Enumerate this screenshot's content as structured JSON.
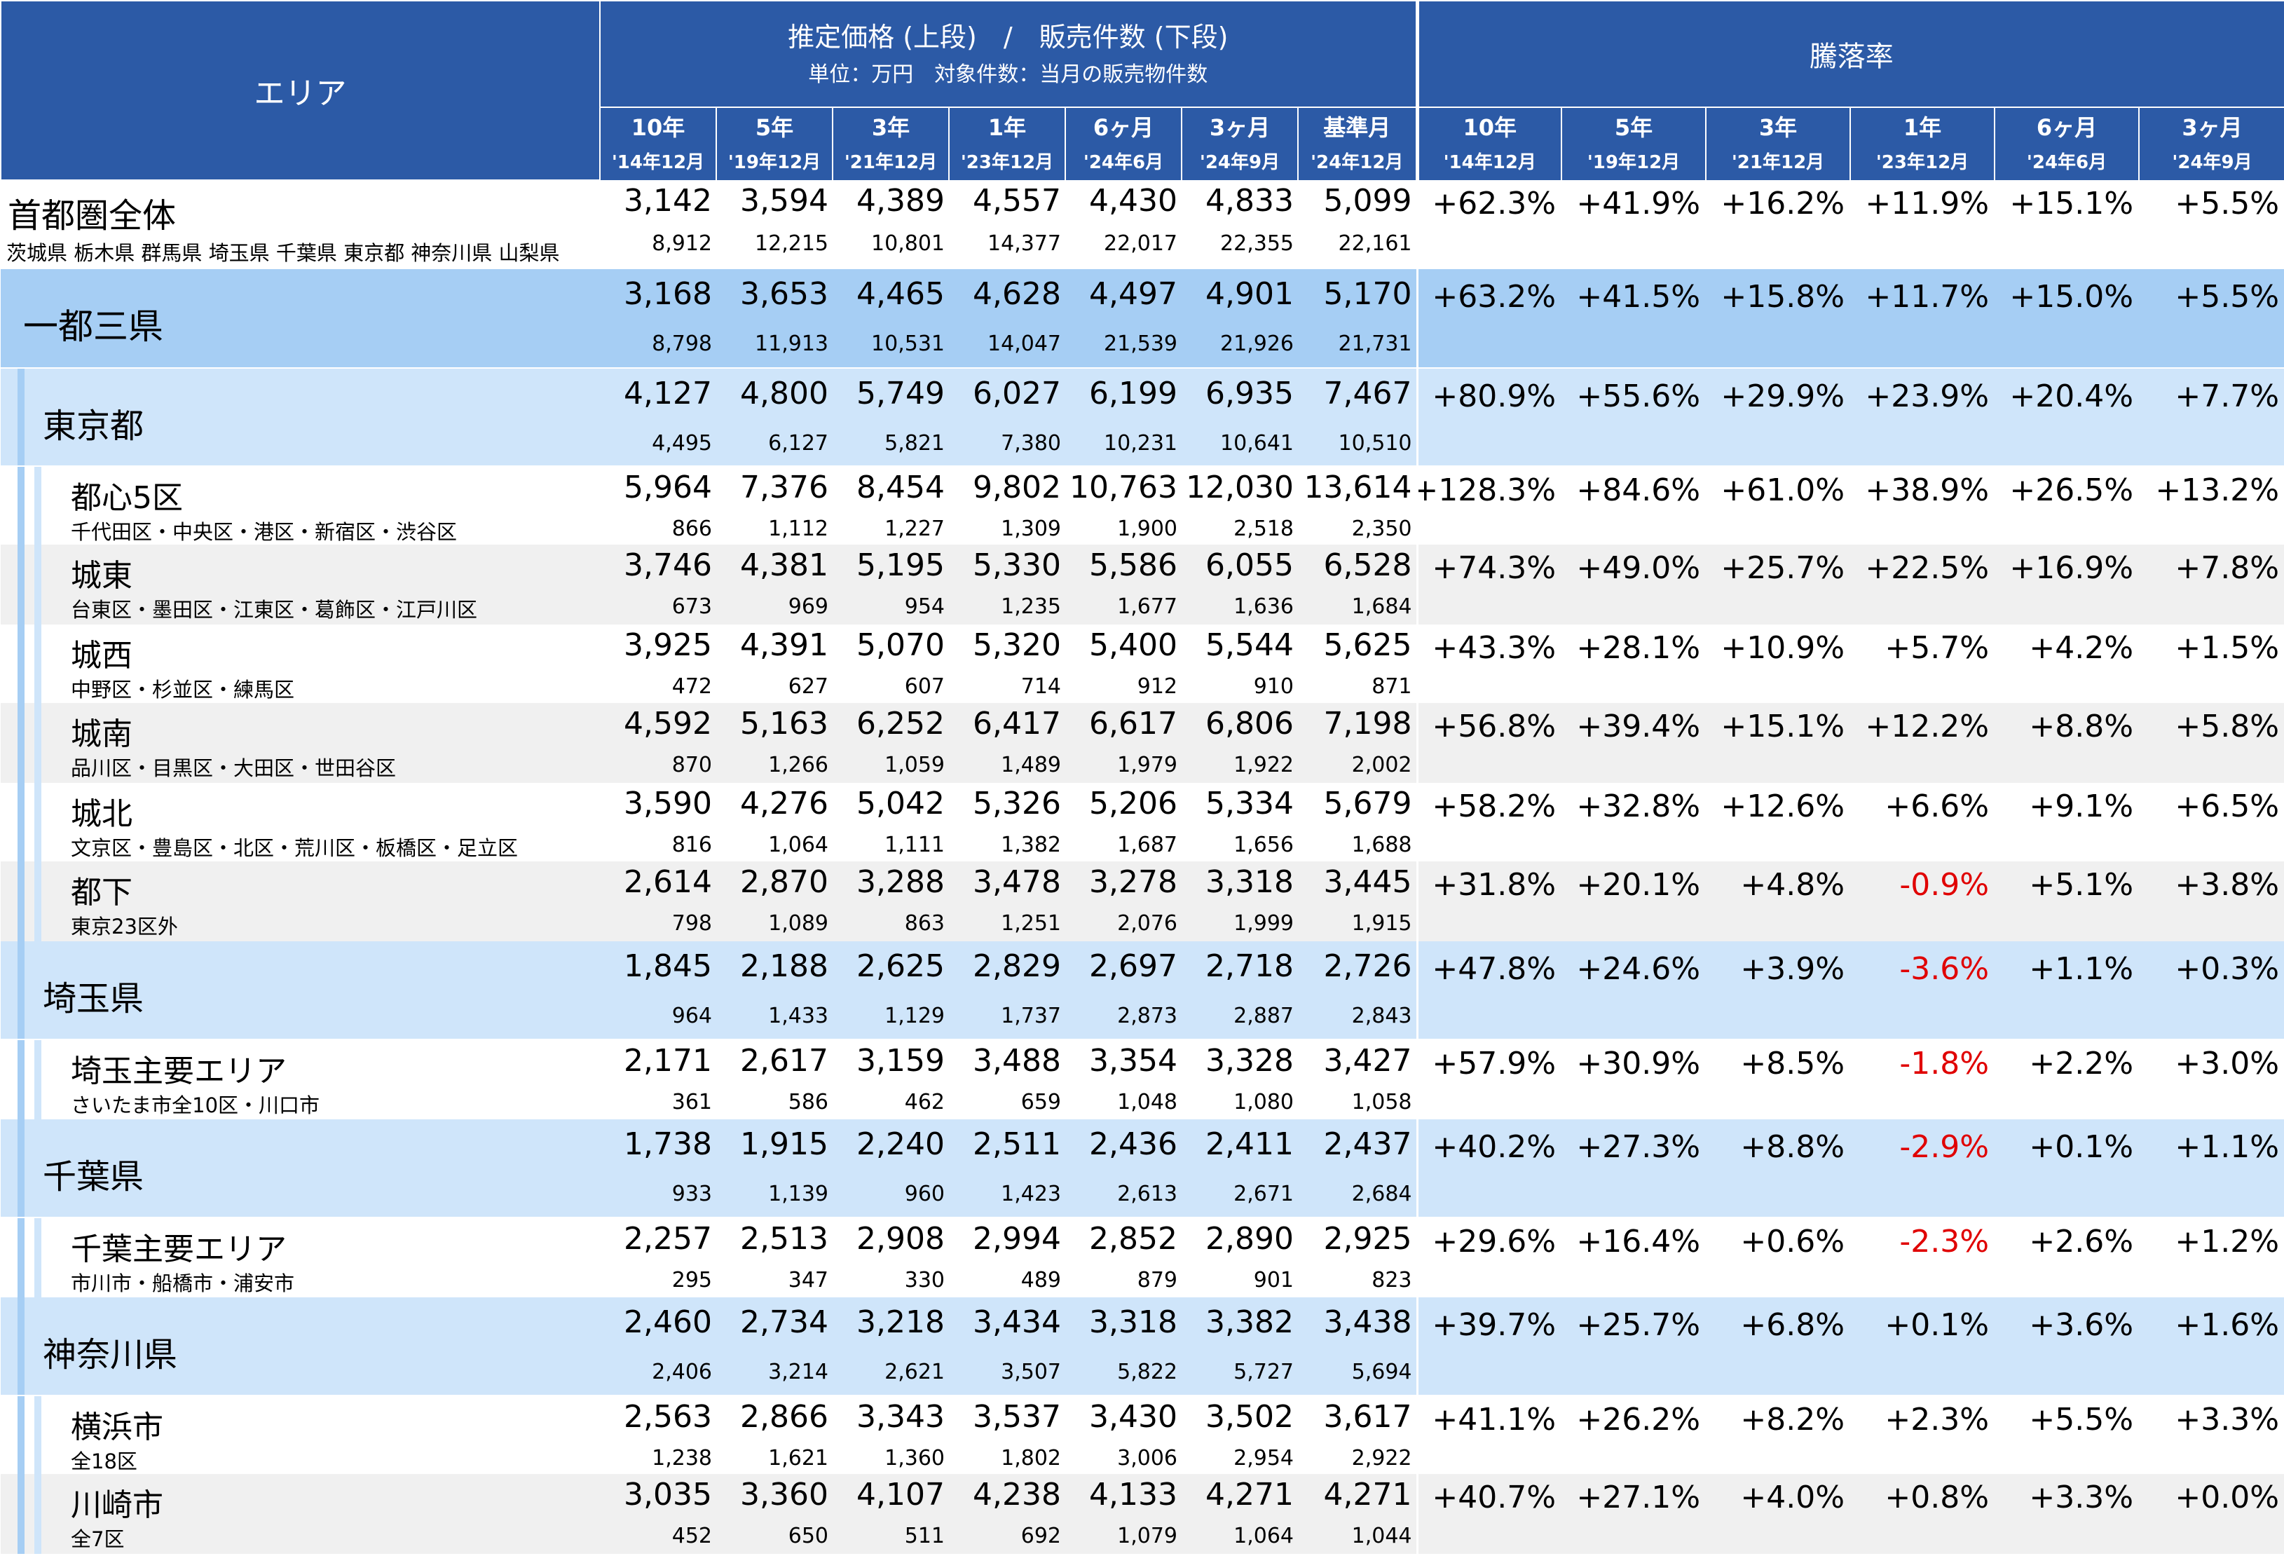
{
  "header": {
    "area": "エリア",
    "price_title": "推定価格 (上段)　/　販売件数 (下段)",
    "unit_note": "単位：万円　対象件数：当月の販売物件数",
    "rise_title": "騰落率",
    "price_cols": [
      {
        "top": "10年",
        "bottom": "'14年12月"
      },
      {
        "top": "5年",
        "bottom": "'19年12月"
      },
      {
        "top": "3年",
        "bottom": "'21年12月"
      },
      {
        "top": "1年",
        "bottom": "'23年12月"
      },
      {
        "top": "6ヶ月",
        "bottom": "'24年6月"
      },
      {
        "top": "3ヶ月",
        "bottom": "'24年9月"
      },
      {
        "top": "基準月",
        "bottom": "'24年12月"
      }
    ],
    "rate_cols": [
      {
        "top": "10年",
        "bottom": "'14年12月"
      },
      {
        "top": "5年",
        "bottom": "'19年12月"
      },
      {
        "top": "3年",
        "bottom": "'21年12月"
      },
      {
        "top": "1年",
        "bottom": "'23年12月"
      },
      {
        "top": "6ヶ月",
        "bottom": "'24年6月"
      },
      {
        "top": "3ヶ月",
        "bottom": "'24年9月"
      }
    ]
  },
  "rows": [
    {
      "name": "首都圏全体",
      "sub": "茨城県 栃木県 群馬県 埼玉県 千葉県 東京都 神奈川県 山梨県",
      "prices": [
        "3,142",
        "3,594",
        "4,389",
        "4,557",
        "4,430",
        "4,833",
        "5,099"
      ],
      "counts": [
        "8,912",
        "12,215",
        "10,801",
        "14,377",
        "22,017",
        "22,355",
        "22,161"
      ],
      "rates": [
        "+62.3%",
        "+41.9%",
        "+16.2%",
        "+11.9%",
        "+15.1%",
        "+5.5%"
      ]
    },
    {
      "name": "一都三県",
      "sub": "",
      "prices": [
        "3,168",
        "3,653",
        "4,465",
        "4,628",
        "4,497",
        "4,901",
        "5,170"
      ],
      "counts": [
        "8,798",
        "11,913",
        "10,531",
        "14,047",
        "21,539",
        "21,926",
        "21,731"
      ],
      "rates": [
        "+63.2%",
        "+41.5%",
        "+15.8%",
        "+11.7%",
        "+15.0%",
        "+5.5%"
      ]
    },
    {
      "name": "東京都",
      "sub": "",
      "prices": [
        "4,127",
        "4,800",
        "5,749",
        "6,027",
        "6,199",
        "6,935",
        "7,467"
      ],
      "counts": [
        "4,495",
        "6,127",
        "5,821",
        "7,380",
        "10,231",
        "10,641",
        "10,510"
      ],
      "rates": [
        "+80.9%",
        "+55.6%",
        "+29.9%",
        "+23.9%",
        "+20.4%",
        "+7.7%"
      ]
    },
    {
      "name": "都心5区",
      "sub": "千代田区・中央区・港区・新宿区・渋谷区",
      "prices": [
        "5,964",
        "7,376",
        "8,454",
        "9,802",
        "10,763",
        "12,030",
        "13,614"
      ],
      "counts": [
        "866",
        "1,112",
        "1,227",
        "1,309",
        "1,900",
        "2,518",
        "2,350"
      ],
      "rates": [
        "+128.3%",
        "+84.6%",
        "+61.0%",
        "+38.9%",
        "+26.5%",
        "+13.2%"
      ]
    },
    {
      "name": "城東",
      "sub": "台東区・墨田区・江東区・葛飾区・江戸川区",
      "prices": [
        "3,746",
        "4,381",
        "5,195",
        "5,330",
        "5,586",
        "6,055",
        "6,528"
      ],
      "counts": [
        "673",
        "969",
        "954",
        "1,235",
        "1,677",
        "1,636",
        "1,684"
      ],
      "rates": [
        "+74.3%",
        "+49.0%",
        "+25.7%",
        "+22.5%",
        "+16.9%",
        "+7.8%"
      ]
    },
    {
      "name": "城西",
      "sub": "中野区・杉並区・練馬区",
      "prices": [
        "3,925",
        "4,391",
        "5,070",
        "5,320",
        "5,400",
        "5,544",
        "5,625"
      ],
      "counts": [
        "472",
        "627",
        "607",
        "714",
        "912",
        "910",
        "871"
      ],
      "rates": [
        "+43.3%",
        "+28.1%",
        "+10.9%",
        "+5.7%",
        "+4.2%",
        "+1.5%"
      ]
    },
    {
      "name": "城南",
      "sub": "品川区・目黒区・大田区・世田谷区",
      "prices": [
        "4,592",
        "5,163",
        "6,252",
        "6,417",
        "6,617",
        "6,806",
        "7,198"
      ],
      "counts": [
        "870",
        "1,266",
        "1,059",
        "1,489",
        "1,979",
        "1,922",
        "2,002"
      ],
      "rates": [
        "+56.8%",
        "+39.4%",
        "+15.1%",
        "+12.2%",
        "+8.8%",
        "+5.8%"
      ]
    },
    {
      "name": "城北",
      "sub": "文京区・豊島区・北区・荒川区・板橋区・足立区",
      "prices": [
        "3,590",
        "4,276",
        "5,042",
        "5,326",
        "5,206",
        "5,334",
        "5,679"
      ],
      "counts": [
        "816",
        "1,064",
        "1,111",
        "1,382",
        "1,687",
        "1,656",
        "1,688"
      ],
      "rates": [
        "+58.2%",
        "+32.8%",
        "+12.6%",
        "+6.6%",
        "+9.1%",
        "+6.5%"
      ]
    },
    {
      "name": "都下",
      "sub": "東京23区外",
      "prices": [
        "2,614",
        "2,870",
        "3,288",
        "3,478",
        "3,278",
        "3,318",
        "3,445"
      ],
      "counts": [
        "798",
        "1,089",
        "863",
        "1,251",
        "2,076",
        "1,999",
        "1,915"
      ],
      "rates": [
        "+31.8%",
        "+20.1%",
        "+4.8%",
        "-0.9%",
        "+5.1%",
        "+3.8%"
      ]
    },
    {
      "name": "埼玉県",
      "sub": "",
      "prices": [
        "1,845",
        "2,188",
        "2,625",
        "2,829",
        "2,697",
        "2,718",
        "2,726"
      ],
      "counts": [
        "964",
        "1,433",
        "1,129",
        "1,737",
        "2,873",
        "2,887",
        "2,843"
      ],
      "rates": [
        "+47.8%",
        "+24.6%",
        "+3.9%",
        "-3.6%",
        "+1.1%",
        "+0.3%"
      ]
    },
    {
      "name": "埼玉主要エリア",
      "sub": "さいたま市全10区・川口市",
      "prices": [
        "2,171",
        "2,617",
        "3,159",
        "3,488",
        "3,354",
        "3,328",
        "3,427"
      ],
      "counts": [
        "361",
        "586",
        "462",
        "659",
        "1,048",
        "1,080",
        "1,058"
      ],
      "rates": [
        "+57.9%",
        "+30.9%",
        "+8.5%",
        "-1.8%",
        "+2.2%",
        "+3.0%"
      ]
    },
    {
      "name": "千葉県",
      "sub": "",
      "prices": [
        "1,738",
        "1,915",
        "2,240",
        "2,511",
        "2,436",
        "2,411",
        "2,437"
      ],
      "counts": [
        "933",
        "1,139",
        "960",
        "1,423",
        "2,613",
        "2,671",
        "2,684"
      ],
      "rates": [
        "+40.2%",
        "+27.3%",
        "+8.8%",
        "-2.9%",
        "+0.1%",
        "+1.1%"
      ]
    },
    {
      "name": "千葉主要エリア",
      "sub": "市川市・船橋市・浦安市",
      "prices": [
        "2,257",
        "2,513",
        "2,908",
        "2,994",
        "2,852",
        "2,890",
        "2,925"
      ],
      "counts": [
        "295",
        "347",
        "330",
        "489",
        "879",
        "901",
        "823"
      ],
      "rates": [
        "+29.6%",
        "+16.4%",
        "+0.6%",
        "-2.3%",
        "+2.6%",
        "+1.2%"
      ]
    },
    {
      "name": "神奈川県",
      "sub": "",
      "prices": [
        "2,460",
        "2,734",
        "3,218",
        "3,434",
        "3,318",
        "3,382",
        "3,438"
      ],
      "counts": [
        "2,406",
        "3,214",
        "2,621",
        "3,507",
        "5,822",
        "5,727",
        "5,694"
      ],
      "rates": [
        "+39.7%",
        "+25.7%",
        "+6.8%",
        "+0.1%",
        "+3.6%",
        "+1.6%"
      ]
    },
    {
      "name": "横浜市",
      "sub": "全18区",
      "prices": [
        "2,563",
        "2,866",
        "3,343",
        "3,537",
        "3,430",
        "3,502",
        "3,617"
      ],
      "counts": [
        "1,238",
        "1,621",
        "1,360",
        "1,802",
        "3,006",
        "2,954",
        "2,922"
      ],
      "rates": [
        "+41.1%",
        "+26.2%",
        "+8.2%",
        "+2.3%",
        "+5.5%",
        "+3.3%"
      ]
    },
    {
      "name": "川崎市",
      "sub": "全7区",
      "prices": [
        "3,035",
        "3,360",
        "4,107",
        "4,238",
        "4,133",
        "4,271",
        "4,271"
      ],
      "counts": [
        "452",
        "650",
        "511",
        "692",
        "1,079",
        "1,064",
        "1,044"
      ],
      "rates": [
        "+40.7%",
        "+27.1%",
        "+4.0%",
        "+0.8%",
        "+3.3%",
        "+0.0%"
      ]
    }
  ],
  "colors": {
    "header_bg": "#2c5aa6",
    "level_blue": "#a6cef4",
    "level_light_blue": "#cfe5fa",
    "stripe_gray": "#f0f0f0",
    "negative": "#e00000"
  }
}
